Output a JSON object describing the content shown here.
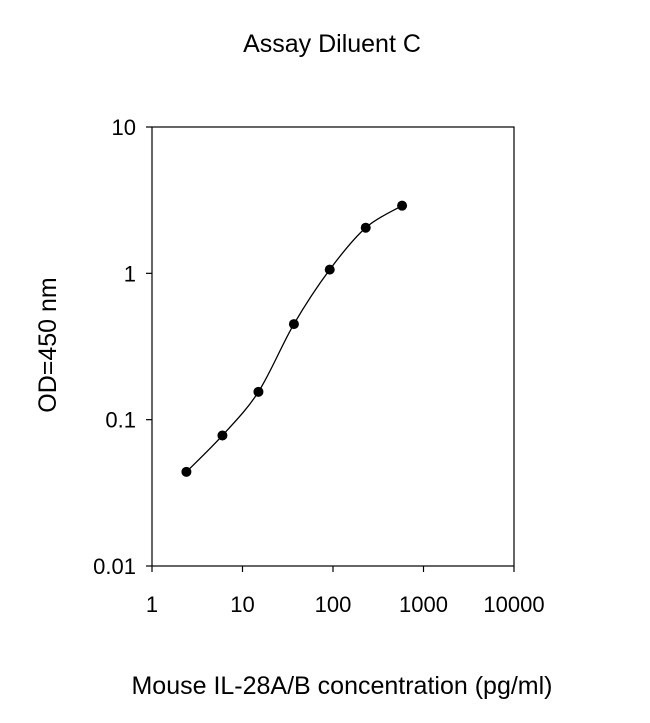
{
  "chart_data": {
    "type": "scatter",
    "title": "Assay Diluent C",
    "xlabel": "Mouse IL-28A/B concentration (pg/ml)",
    "ylabel": "OD=450 nm",
    "x_scale": "log",
    "y_scale": "log",
    "xlim": [
      1,
      10000
    ],
    "ylim": [
      0.01,
      10
    ],
    "x_ticks": [
      1,
      10,
      100,
      1000,
      10000
    ],
    "x_tick_labels": [
      "1",
      "10",
      "100",
      "1000",
      "10000"
    ],
    "y_ticks": [
      0.01,
      0.1,
      1,
      10
    ],
    "y_tick_labels": [
      "0.01",
      "0.1",
      "1",
      "10"
    ],
    "grid": false,
    "legend": "none",
    "line_color": "#000000",
    "marker_color": "#000000",
    "series": [
      {
        "points": [
          {
            "x": 2.4,
            "y": 0.044
          },
          {
            "x": 6.0,
            "y": 0.078
          },
          {
            "x": 15.0,
            "y": 0.155
          },
          {
            "x": 37.0,
            "y": 0.45
          },
          {
            "x": 92.0,
            "y": 1.06
          },
          {
            "x": 230.0,
            "y": 2.05
          },
          {
            "x": 580.0,
            "y": 2.9
          }
        ]
      }
    ]
  }
}
